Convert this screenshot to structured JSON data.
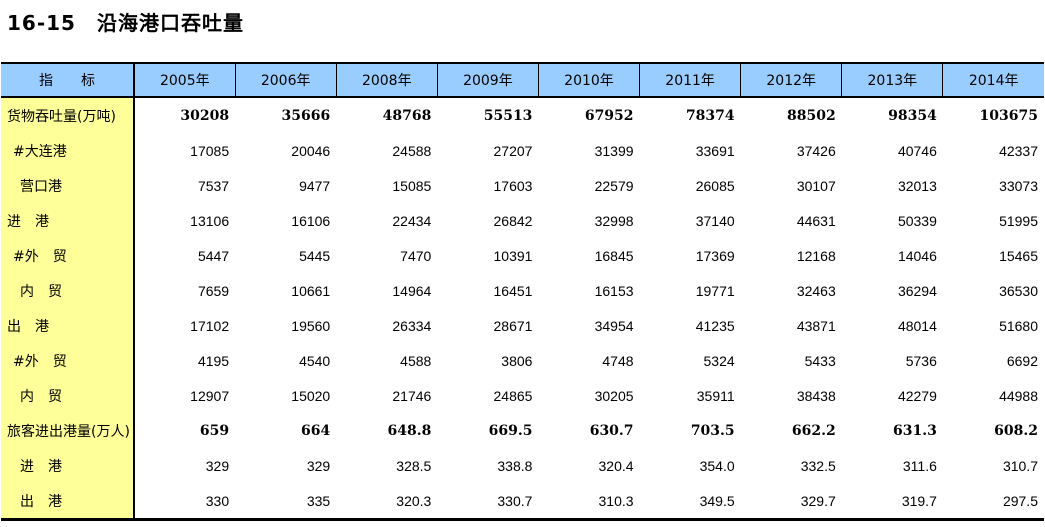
{
  "title": "16-15　沿海港口吞吐量",
  "colors": {
    "header_bg": "#99CCFF",
    "label_col_bg": "#FFFF99",
    "border": "#000000",
    "page_bg": "#FFFFFF"
  },
  "table": {
    "header": {
      "indicator_label": "指　　标",
      "years": [
        "2005年",
        "2006年",
        "2008年",
        "2009年",
        "2010年",
        "2011年",
        "2012年",
        "2013年",
        "2014年"
      ]
    },
    "rows": [
      {
        "label": "货物吞吐量(万吨)",
        "indent": 0,
        "bold": true,
        "values": [
          "30208",
          "35666",
          "48768",
          "55513",
          "67952",
          "78374",
          "88502",
          "98354",
          "103675"
        ]
      },
      {
        "label": "#大连港",
        "indent": 1,
        "bold": false,
        "values": [
          "17085",
          "20046",
          "24588",
          "27207",
          "31399",
          "33691",
          "37426",
          "40746",
          "42337"
        ]
      },
      {
        "label": "营口港",
        "indent": 2,
        "bold": false,
        "values": [
          "7537",
          "9477",
          "15085",
          "17603",
          "22579",
          "26085",
          "30107",
          "32013",
          "33073"
        ]
      },
      {
        "label": "进　港",
        "indent": 0,
        "bold": false,
        "values": [
          "13106",
          "16106",
          "22434",
          "26842",
          "32998",
          "37140",
          "44631",
          "50339",
          "51995"
        ]
      },
      {
        "label": "#外　贸",
        "indent": 1,
        "bold": false,
        "values": [
          "5447",
          "5445",
          "7470",
          "10391",
          "16845",
          "17369",
          "12168",
          "14046",
          "15465"
        ]
      },
      {
        "label": "内　贸",
        "indent": 2,
        "bold": false,
        "values": [
          "7659",
          "10661",
          "14964",
          "16451",
          "16153",
          "19771",
          "32463",
          "36294",
          "36530"
        ]
      },
      {
        "label": "出　港",
        "indent": 0,
        "bold": false,
        "values": [
          "17102",
          "19560",
          "26334",
          "28671",
          "34954",
          "41235",
          "43871",
          "48014",
          "51680"
        ]
      },
      {
        "label": "#外　贸",
        "indent": 1,
        "bold": false,
        "values": [
          "4195",
          "4540",
          "4588",
          "3806",
          "4748",
          "5324",
          "5433",
          "5736",
          "6692"
        ]
      },
      {
        "label": "内　贸",
        "indent": 2,
        "bold": false,
        "values": [
          "12907",
          "15020",
          "21746",
          "24865",
          "30205",
          "35911",
          "38438",
          "42279",
          "44988"
        ]
      },
      {
        "label": "旅客进出港量(万人)",
        "indent": 0,
        "bold": true,
        "values": [
          "659",
          "664",
          "648.8",
          "669.5",
          "630.7",
          "703.5",
          "662.2",
          "631.3",
          "608.2"
        ]
      },
      {
        "label": "进　港",
        "indent": 2,
        "bold": false,
        "values": [
          "329",
          "329",
          "328.5",
          "338.8",
          "320.4",
          "354.0",
          "332.5",
          "311.6",
          "310.7"
        ]
      },
      {
        "label": "出　港",
        "indent": 2,
        "bold": false,
        "values": [
          "330",
          "335",
          "320.3",
          "330.7",
          "310.3",
          "349.5",
          "329.7",
          "319.7",
          "297.5"
        ]
      }
    ]
  }
}
